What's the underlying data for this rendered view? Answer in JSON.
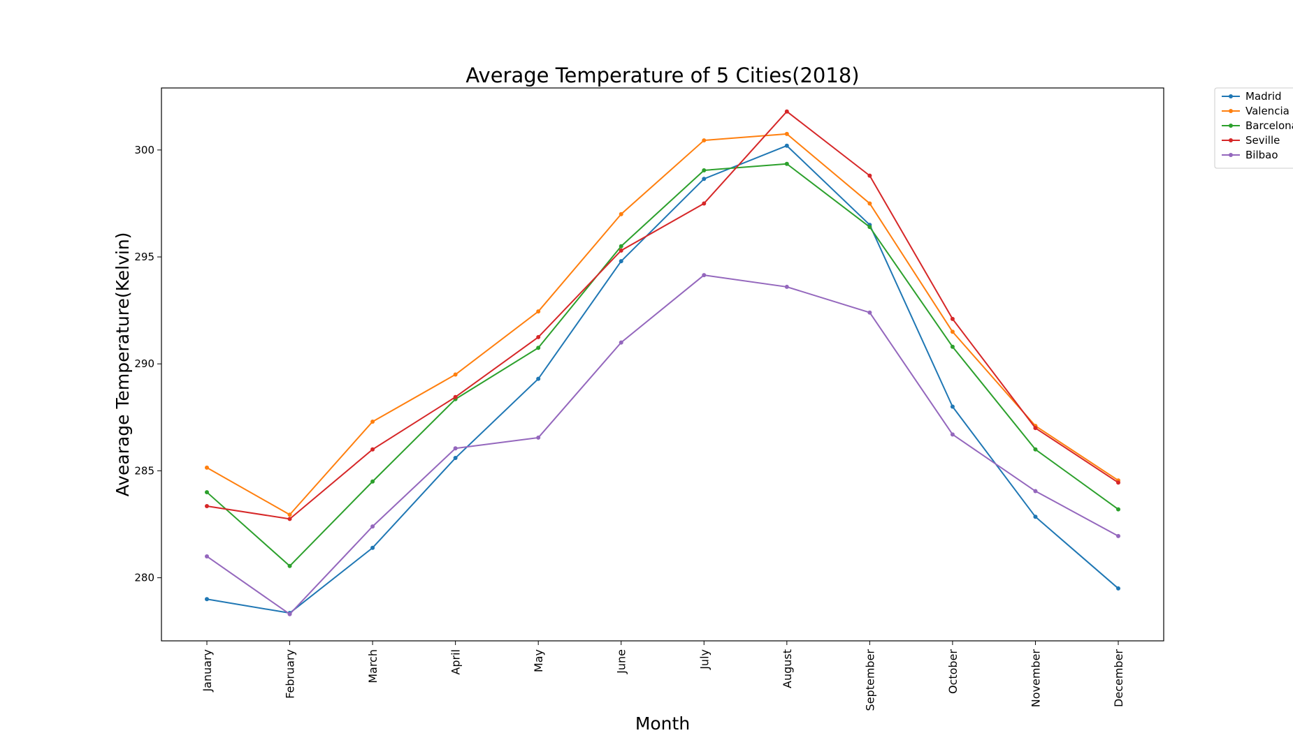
{
  "chart_data": {
    "type": "line",
    "title": "Average Temperature of 5 Cities(2018)",
    "xlabel": "Month",
    "ylabel": "Avearage Temperature(Kelvin)",
    "categories": [
      "January",
      "February",
      "March",
      "April",
      "May",
      "June",
      "July",
      "August",
      "September",
      "October",
      "November",
      "December"
    ],
    "yticks": [
      280,
      285,
      290,
      295,
      300
    ],
    "ylim": [
      277.05,
      302.9
    ],
    "grid": false,
    "legend_position": "outside-top-right",
    "series": [
      {
        "name": "Madrid",
        "color": "#1f77b4",
        "values": [
          279.0,
          278.35,
          281.4,
          285.6,
          289.3,
          294.8,
          298.65,
          300.2,
          296.5,
          288.0,
          282.85,
          279.5
        ]
      },
      {
        "name": "Valencia",
        "color": "#ff7f0e",
        "values": [
          285.15,
          282.95,
          287.3,
          289.5,
          292.45,
          297.0,
          300.45,
          300.75,
          297.5,
          291.5,
          287.1,
          284.55
        ]
      },
      {
        "name": "Barcelona",
        "color": "#2ca02c",
        "values": [
          284.0,
          280.55,
          284.5,
          288.35,
          290.75,
          295.5,
          299.05,
          299.35,
          296.4,
          290.8,
          286.0,
          283.2
        ]
      },
      {
        "name": "Seville",
        "color": "#d62728",
        "values": [
          283.35,
          282.75,
          286.0,
          288.45,
          291.25,
          295.3,
          297.5,
          301.8,
          298.8,
          292.1,
          287.0,
          284.45
        ]
      },
      {
        "name": "Bilbao",
        "color": "#9467bd",
        "values": [
          281.0,
          278.3,
          282.4,
          286.05,
          286.55,
          291.0,
          294.15,
          293.6,
          292.4,
          286.7,
          284.05,
          281.95
        ]
      }
    ]
  }
}
